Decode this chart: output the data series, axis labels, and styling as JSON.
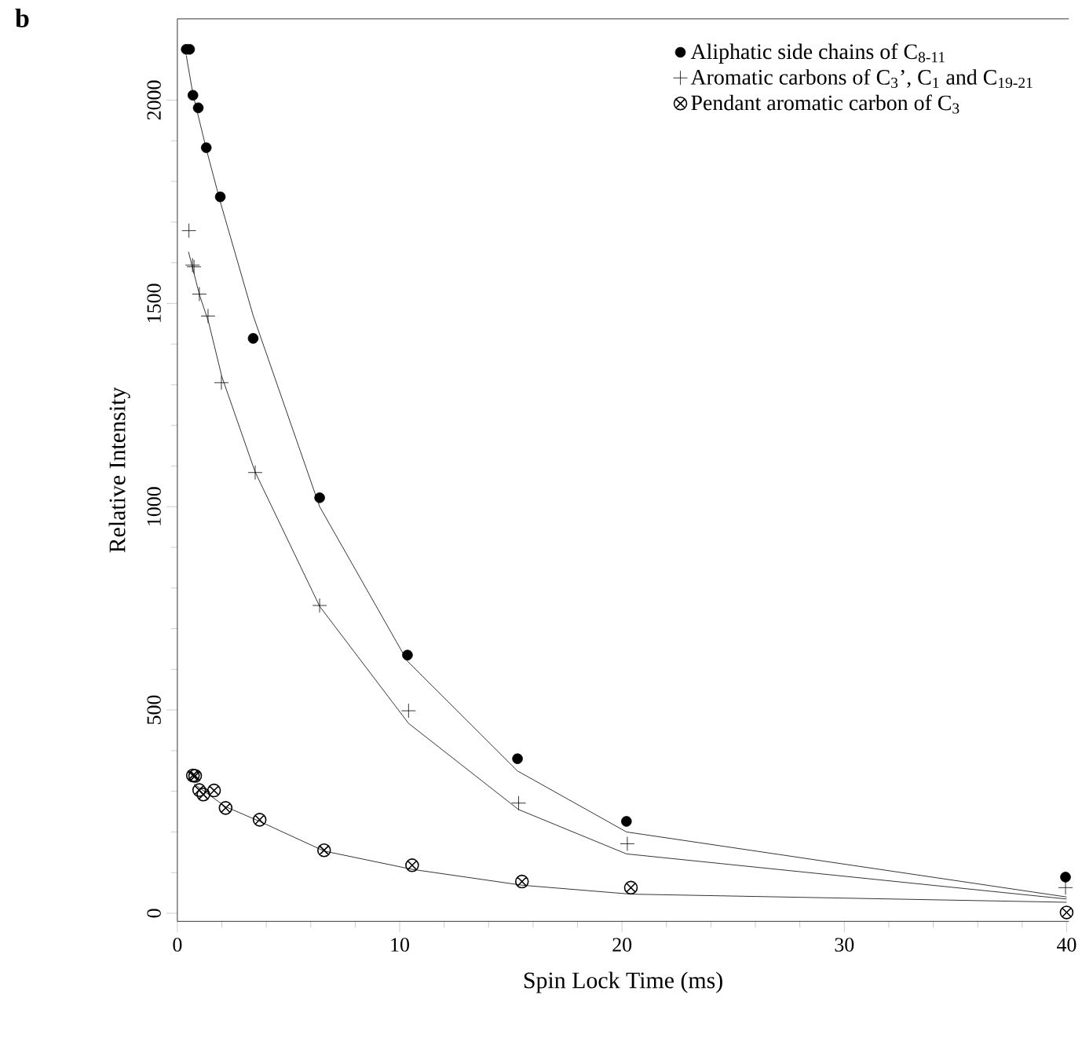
{
  "chart_data": {
    "type": "scatter",
    "title": "b",
    "xlabel": "Spin Lock Time (ms)",
    "ylabel": "Relative Intensity",
    "xlim": [
      0,
      40.1
    ],
    "ylim": [
      -20,
      2200
    ],
    "xticks": [
      0,
      10,
      20,
      30,
      40
    ],
    "yticks": [
      0,
      500,
      1000,
      1500,
      2000
    ],
    "grid": false,
    "legend": "top right",
    "series": [
      {
        "name": "Aliphatic side chains of C$_{8-11}$",
        "color": "#000000",
        "marker": "circle",
        "x": [
          0.4,
          0.55,
          0.7,
          0.94,
          1.3,
          1.93,
          3.41,
          6.4,
          10.35,
          15.3,
          20.2,
          39.95
        ],
        "values": [
          2125,
          2125,
          2012,
          1981,
          1883,
          1762,
          1414,
          1022,
          635,
          380,
          226,
          89
        ]
      },
      {
        "name": "Aromatic carbons of C$_{3}$’, C$_{1}$ and C$_{19-21}$",
        "color": "#000000",
        "marker": "cross",
        "x": [
          0.52,
          0.68,
          0.75,
          0.99,
          1.38,
          1.98,
          3.5,
          6.4,
          10.4,
          15.35,
          20.24,
          39.95
        ],
        "values": [
          1679,
          1594,
          1590,
          1523,
          1469,
          1305,
          1084,
          757,
          498,
          271,
          171,
          63
        ]
      },
      {
        "name": "Pendant aromatic carbon of C$_{3}$",
        "color": "#000000",
        "x": [
          0.7,
          0.8,
          0.98,
          1.17,
          1.65,
          2.17,
          3.7,
          6.6,
          10.56,
          15.5,
          20.4,
          40
        ],
        "values": [
          339,
          338,
          303,
          292,
          302,
          259,
          230,
          155,
          118,
          78,
          63,
          2
        ]
      },
      {
        "type": "line",
        "color": "#000000",
        "marker": "none",
        "x": [
          0.4,
          0.7,
          1.3,
          1.93,
          3.41,
          6.4,
          10.35,
          15.3,
          20.2,
          40
        ],
        "values": [
          2110,
          2015,
          1880,
          1750,
          1470,
          1000,
          620,
          350,
          200,
          40
        ]
      },
      {
        "type": "line",
        "color": "#000000",
        "marker": "none",
        "x": [
          0.5,
          1.0,
          1.4,
          2.0,
          3.5,
          6.4,
          10.4,
          15.35,
          20.2,
          40
        ],
        "values": [
          1627,
          1520,
          1455,
          1320,
          1085,
          755,
          467,
          255,
          146,
          35
        ]
      },
      {
        "type": "line",
        "color": "#000000",
        "marker": "none",
        "x": [
          0.75,
          2.17,
          3.7,
          6.6,
          10.56,
          15.5,
          20.4,
          40
        ],
        "values": [
          318,
          262,
          226,
          153,
          108,
          69,
          47,
          27
        ]
      }
    ]
  }
}
